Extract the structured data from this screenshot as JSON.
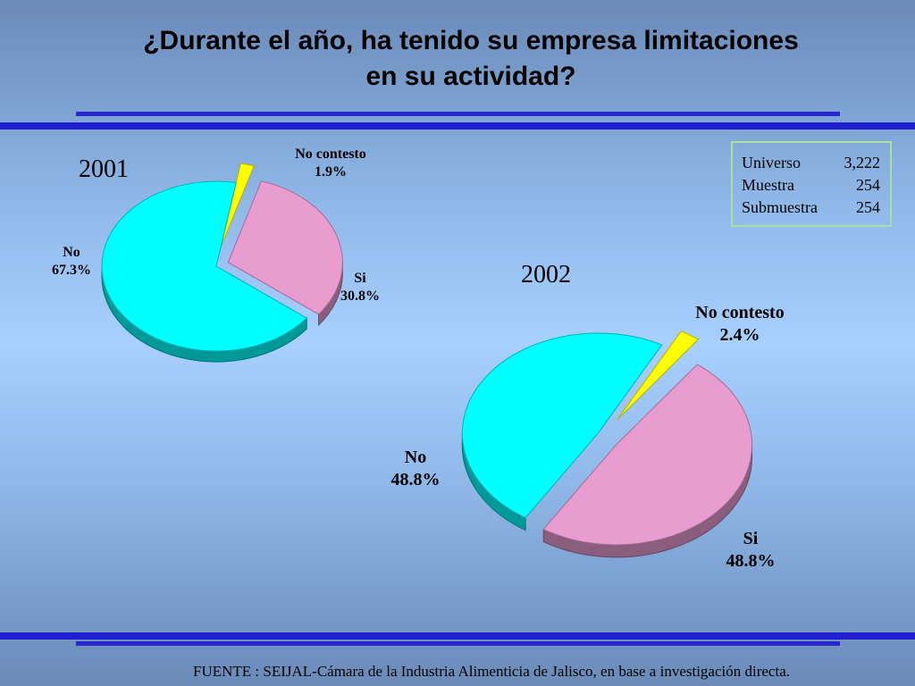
{
  "title": {
    "line1": "¿Durante el año, ha tenido su empresa limitaciones",
    "line2": "en su actividad?"
  },
  "info_box": {
    "rows": [
      {
        "label": "Universo",
        "value": "3,222"
      },
      {
        "label": "Muestra",
        "value": "254"
      },
      {
        "label": "Submuestra",
        "value": "254"
      }
    ]
  },
  "source": "FUENTE : SEIJAL-Cámara de la Industria Alimenticia de Jalisco,  en base a investigación directa.",
  "colors": {
    "no": "#00ffff",
    "si": "#e89cd0",
    "no_contesto": "#ffff00"
  },
  "chart_data": [
    {
      "type": "pie",
      "title": "2001",
      "slices": [
        {
          "label": "No contesto",
          "value": 1.9,
          "value_label": "1.9%"
        },
        {
          "label": "Si",
          "value": 30.8,
          "value_label": "30.8%"
        },
        {
          "label": "No",
          "value": 67.3,
          "value_label": "67.3%"
        }
      ]
    },
    {
      "type": "pie",
      "title": "2002",
      "slices": [
        {
          "label": "No contesto",
          "value": 2.4,
          "value_label": "2.4%"
        },
        {
          "label": "Si",
          "value": 48.8,
          "value_label": "48.8%"
        },
        {
          "label": "No",
          "value": 48.8,
          "value_label": "48.8%"
        }
      ]
    }
  ]
}
